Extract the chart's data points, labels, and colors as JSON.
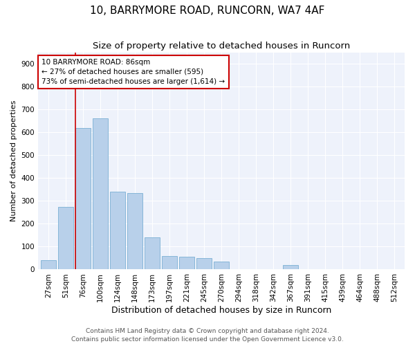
{
  "title1": "10, BARRYMORE ROAD, RUNCORN, WA7 4AF",
  "title2": "Size of property relative to detached houses in Runcorn",
  "xlabel": "Distribution of detached houses by size in Runcorn",
  "ylabel": "Number of detached properties",
  "categories": [
    "27sqm",
    "51sqm",
    "76sqm",
    "100sqm",
    "124sqm",
    "148sqm",
    "173sqm",
    "197sqm",
    "221sqm",
    "245sqm",
    "270sqm",
    "294sqm",
    "318sqm",
    "342sqm",
    "367sqm",
    "391sqm",
    "415sqm",
    "439sqm",
    "464sqm",
    "488sqm",
    "512sqm"
  ],
  "values": [
    40,
    275,
    620,
    660,
    340,
    335,
    140,
    58,
    55,
    50,
    35,
    0,
    0,
    0,
    20,
    0,
    0,
    0,
    0,
    0,
    0
  ],
  "bar_color": "#b8d0ea",
  "bar_edge_color": "#7aafd4",
  "annotation_text": "10 BARRYMORE ROAD: 86sqm\n← 27% of detached houses are smaller (595)\n73% of semi-detached houses are larger (1,614) →",
  "annotation_box_color": "#ffffff",
  "annotation_box_edge_color": "#cc0000",
  "vline_color": "#cc0000",
  "footer1": "Contains HM Land Registry data © Crown copyright and database right 2024.",
  "footer2": "Contains public sector information licensed under the Open Government Licence v3.0.",
  "ylim": [
    0,
    950
  ],
  "yticks": [
    0,
    100,
    200,
    300,
    400,
    500,
    600,
    700,
    800,
    900
  ],
  "bg_color": "#eef2fb",
  "title1_fontsize": 11,
  "title2_fontsize": 9.5,
  "xlabel_fontsize": 9,
  "ylabel_fontsize": 8,
  "tick_fontsize": 7.5,
  "annot_fontsize": 7.5,
  "footer_fontsize": 6.5
}
